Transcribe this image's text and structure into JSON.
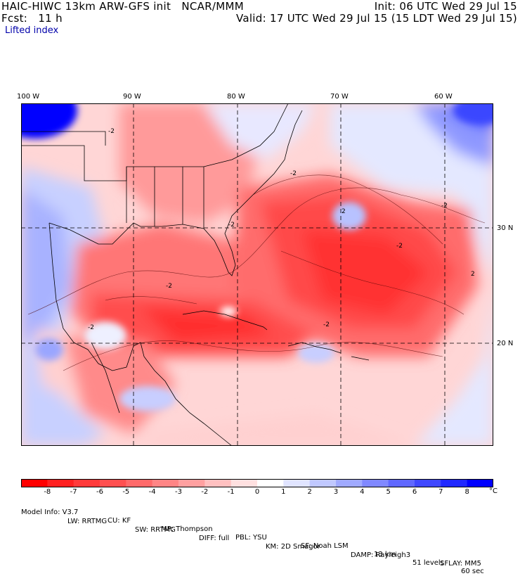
{
  "header": {
    "title_left": "HAIC-HIWC 13km ARW-GFS init   NCAR/MMM",
    "init": "Init: 06 UTC Wed 29 Jul 15",
    "fcst": "Fcst:   11 h",
    "valid": "Valid: 17 UTC Wed 29 Jul 15 (15 LDT Wed 29 Jul 15)",
    "field": "Lifted index"
  },
  "map": {
    "lon_labels": [
      "100 W",
      "90 W",
      "80 W",
      "70 W",
      "60 W"
    ],
    "lat_labels": [
      "30 N",
      "20 N"
    ],
    "contour_labels": [
      "-2",
      "-2",
      "-2",
      "-2",
      "-2",
      "-2",
      "2",
      "2",
      "-2",
      "-2"
    ]
  },
  "colorbar": {
    "labels": [
      "-8",
      "-7",
      "-6",
      "-5",
      "-4",
      "-3",
      "-2",
      "-1",
      "0",
      "1",
      "2",
      "3",
      "4",
      "5",
      "6",
      "7",
      "8"
    ],
    "unit": "°C",
    "colors": [
      "#ff0000",
      "#ff2020",
      "#ff3a3a",
      "#ff5050",
      "#ff6a6a",
      "#ff8585",
      "#ffa0a0",
      "#ffc0c0",
      "#ffe0e0",
      "#ffffff",
      "#e0e4ff",
      "#c0c8ff",
      "#a0aaff",
      "#8088ff",
      "#6068ff",
      "#4048ff",
      "#2028ff",
      "#0000ff"
    ]
  },
  "footer": {
    "r1": [
      "Model Info: V3.7",
      "CU: KF",
      "MP: Thompson",
      "PBL: YSU",
      "SF: Noah LSM",
      "13 km",
      "51 levels",
      "60 sec"
    ],
    "r2": [
      "LW: RRTMG",
      "SW: RRTMG",
      "DIFF: full",
      "KM: 2D Smagor",
      "DAMP: Rayleigh3",
      "SFLAY: MM5"
    ]
  }
}
